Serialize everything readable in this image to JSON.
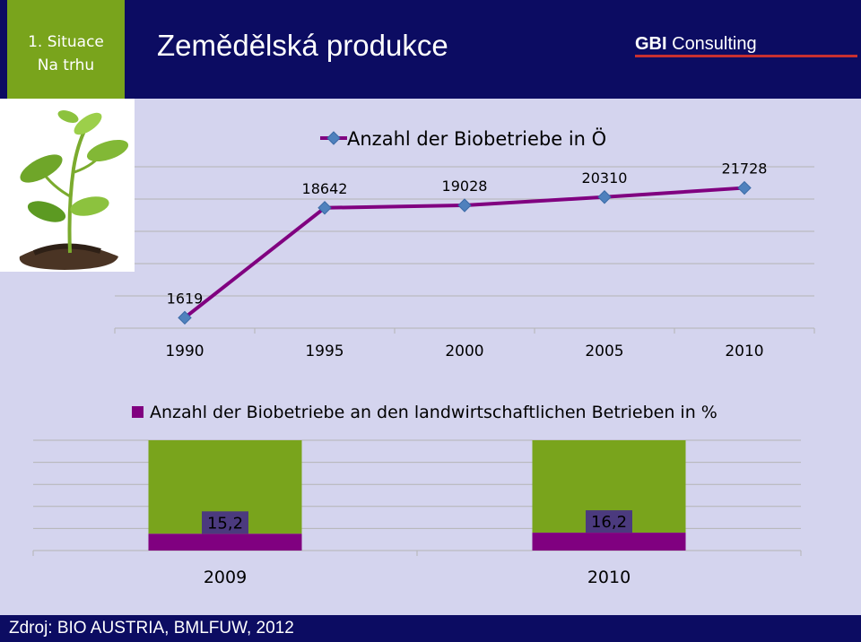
{
  "header": {
    "section_line1": "1. Situace",
    "section_line2": "Na trhu",
    "title": "Zemědělská produkce",
    "logo_bold": "GBI",
    "logo_rest": " Consulting"
  },
  "footer": {
    "source": "Zdroj: BIO AUSTRIA, BMLFUW, 2012"
  },
  "colors": {
    "header_bg": "#0c0c62",
    "accent_green": "#79a41c",
    "purple": "#800080",
    "marker_blue": "#4f81bd",
    "plot_bg": "#d4d4ee",
    "logo_red": "#c83030"
  },
  "icons": {
    "plant": "plant-seedling-icon"
  },
  "chart_data": [
    {
      "type": "line",
      "title": "",
      "categories": [
        "1990",
        "1995",
        "2000",
        "2005",
        "2010"
      ],
      "series": [
        {
          "name": "Anzahl der Biobetriebe in Ö",
          "values": [
            1619,
            18642,
            19028,
            20310,
            21728
          ]
        }
      ],
      "data_labels": [
        "1619",
        "18642",
        "19028",
        "20310",
        "21728"
      ],
      "xlabel": "",
      "ylabel": "",
      "ylim": [
        0,
        25000
      ],
      "grid": true,
      "legend": "top"
    },
    {
      "type": "bar",
      "stacked": true,
      "title": "",
      "categories": [
        "2009",
        "2010"
      ],
      "series": [
        {
          "name": "Anzahl der Biobetriebe an den landwirtschaftlichen Betrieben in %",
          "values": [
            15.2,
            16.2
          ]
        },
        {
          "name": "",
          "values": [
            84.8,
            83.8
          ]
        }
      ],
      "data_labels": [
        "15,2",
        "16,2"
      ],
      "xlabel": "",
      "ylabel": "",
      "ylim": [
        0,
        100
      ],
      "grid": true,
      "legend": "top"
    }
  ]
}
